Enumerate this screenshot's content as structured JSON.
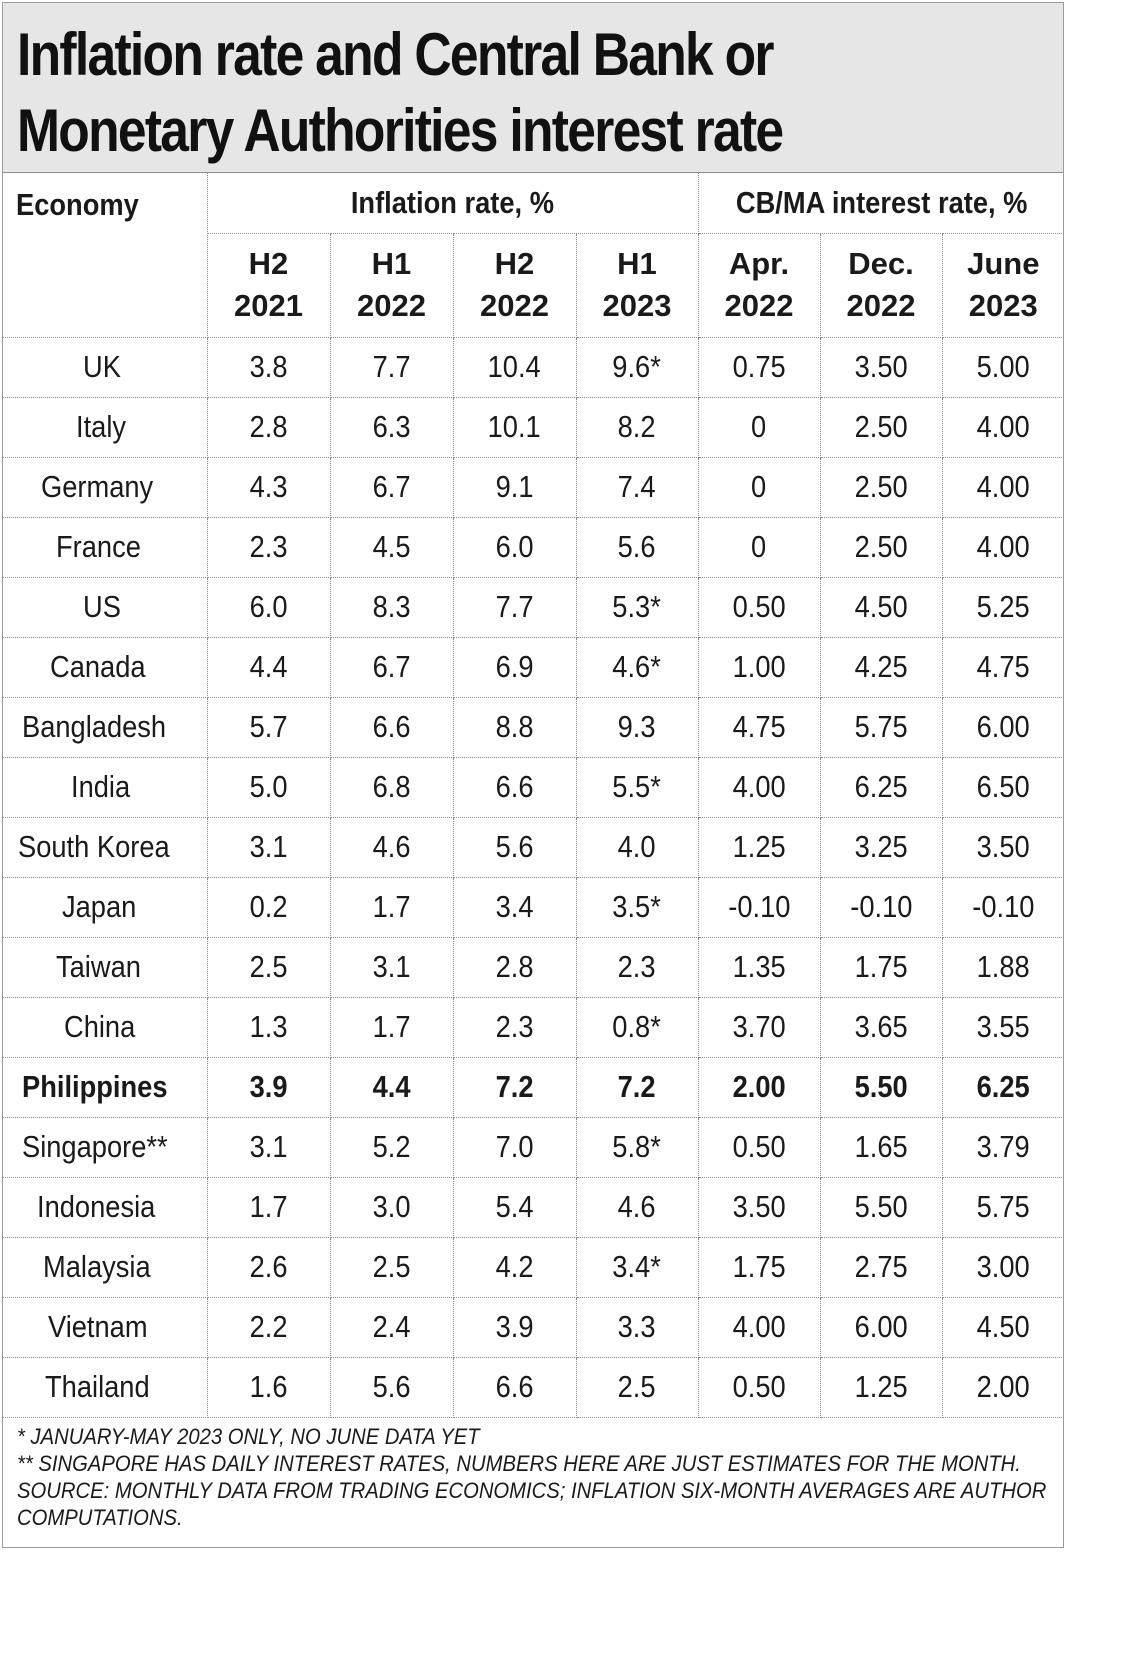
{
  "chart_data": {
    "type": "table",
    "title": [
      "Inflation rate and Central Bank or",
      "Monetary Authorities interest rate"
    ],
    "columns": {
      "economy_header": "Economy",
      "group_inflation": "Inflation rate, %",
      "group_interest": "CB/MA interest rate, %",
      "periods": [
        [
          "H2",
          "2021"
        ],
        [
          "H1",
          "2022"
        ],
        [
          "H2",
          "2022"
        ],
        [
          "H1",
          "2023"
        ],
        [
          "Apr.",
          "2022"
        ],
        [
          "Dec.",
          "2022"
        ],
        [
          "June",
          "2023"
        ]
      ]
    },
    "rows": [
      {
        "economy": "UK",
        "values": [
          "3.8",
          "7.7",
          "10.4",
          "9.6*",
          "0.75",
          "3.50",
          "5.00"
        ]
      },
      {
        "economy": "Italy",
        "values": [
          "2.8",
          "6.3",
          "10.1",
          "8.2",
          "0",
          "2.50",
          "4.00"
        ]
      },
      {
        "economy": "Germany",
        "values": [
          "4.3",
          "6.7",
          "9.1",
          "7.4",
          "0",
          "2.50",
          "4.00"
        ]
      },
      {
        "economy": "France",
        "values": [
          "2.3",
          "4.5",
          "6.0",
          "5.6",
          "0",
          "2.50",
          "4.00"
        ]
      },
      {
        "economy": "US",
        "values": [
          "6.0",
          "8.3",
          "7.7",
          "5.3*",
          "0.50",
          "4.50",
          "5.25"
        ]
      },
      {
        "economy": "Canada",
        "values": [
          "4.4",
          "6.7",
          "6.9",
          "4.6*",
          "1.00",
          "4.25",
          "4.75"
        ]
      },
      {
        "economy": "Bangladesh",
        "values": [
          "5.7",
          "6.6",
          "8.8",
          "9.3",
          "4.75",
          "5.75",
          "6.00"
        ]
      },
      {
        "economy": "India",
        "values": [
          "5.0",
          "6.8",
          "6.6",
          "5.5*",
          "4.00",
          "6.25",
          "6.50"
        ]
      },
      {
        "economy": "South Korea",
        "values": [
          "3.1",
          "4.6",
          "5.6",
          "4.0",
          "1.25",
          "3.25",
          "3.50"
        ]
      },
      {
        "economy": "Japan",
        "values": [
          "0.2",
          "1.7",
          "3.4",
          "3.5*",
          "-0.10",
          "-0.10",
          "-0.10"
        ]
      },
      {
        "economy": "Taiwan",
        "values": [
          "2.5",
          "3.1",
          "2.8",
          "2.3",
          "1.35",
          "1.75",
          "1.88"
        ]
      },
      {
        "economy": "China",
        "values": [
          "1.3",
          "1.7",
          "2.3",
          "0.8*",
          "3.70",
          "3.65",
          "3.55"
        ]
      },
      {
        "economy": "Philippines",
        "values": [
          "3.9",
          "4.4",
          "7.2",
          "7.2",
          "2.00",
          "5.50",
          "6.25"
        ],
        "bold": true
      },
      {
        "economy": "Singapore**",
        "values": [
          "3.1",
          "5.2",
          "7.0",
          "5.8*",
          "0.50",
          "1.65",
          "3.79"
        ]
      },
      {
        "economy": "Indonesia",
        "values": [
          "1.7",
          "3.0",
          "5.4",
          "4.6",
          "3.50",
          "5.50",
          "5.75"
        ]
      },
      {
        "economy": "Malaysia",
        "values": [
          "2.6",
          "2.5",
          "4.2",
          "3.4*",
          "1.75",
          "2.75",
          "3.00"
        ]
      },
      {
        "economy": "Vietnam",
        "values": [
          "2.2",
          "2.4",
          "3.9",
          "3.3",
          "4.00",
          "6.00",
          "4.50"
        ]
      },
      {
        "economy": "Thailand",
        "values": [
          "1.6",
          "5.6",
          "6.6",
          "2.5",
          "0.50",
          "1.25",
          "2.00"
        ]
      }
    ],
    "notes": [
      "* JANUARY-MAY 2023 ONLY, NO JUNE DATA YET",
      "** SINGAPORE HAS DAILY INTEREST RATES, NUMBERS HERE ARE JUST ESTIMATES FOR THE MONTH.",
      "SOURCE: MONTHLY DATA FROM TRADING ECONOMICS; INFLATION SIX-MONTH AVERAGES ARE AUTHOR",
      "COMPUTATIONS."
    ],
    "colors": {
      "title_background": "#e6e6e6",
      "border": "#8a8a8a",
      "text": "#1a1a1a"
    }
  }
}
